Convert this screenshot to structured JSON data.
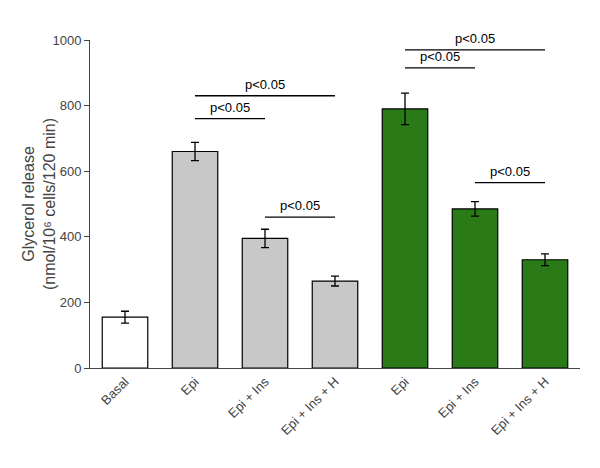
{
  "chart_data": {
    "type": "bar",
    "categories": [
      "Basal",
      "Epi",
      "Epi + Ins",
      "Epi + Ins + H",
      "Epi",
      "Epi + Ins",
      "Epi + Ins + H"
    ],
    "values": [
      155,
      660,
      395,
      265,
      790,
      485,
      330
    ],
    "errors": [
      18,
      28,
      28,
      15,
      48,
      22,
      18
    ],
    "colors": [
      "#ffffff",
      "#c8c8c8",
      "#c8c8c8",
      "#c8c8c8",
      "#2a7a18",
      "#2a7a18",
      "#2a7a18"
    ],
    "ylabel": "Glycerol release\n(nmol/10⁶ cells/120 min)",
    "ylim": [
      0,
      1000
    ],
    "yticks": [
      0,
      200,
      400,
      600,
      800,
      1000
    ],
    "grid": false,
    "annotations": [
      {
        "text": "p<0.05",
        "from": 1,
        "to": 2,
        "y": 760
      },
      {
        "text": "p<0.05",
        "from": 1,
        "to": 3,
        "y": 830
      },
      {
        "text": "p<0.05",
        "from": 4,
        "to": 5,
        "y": 915
      },
      {
        "text": "p<0.05",
        "from": 4,
        "to": 6,
        "y": 970
      },
      {
        "text": "p<0.05",
        "from": 2,
        "to": 3,
        "y": 460
      },
      {
        "text": "p<0.05",
        "from": 5,
        "to": 6,
        "y": 565
      }
    ]
  }
}
